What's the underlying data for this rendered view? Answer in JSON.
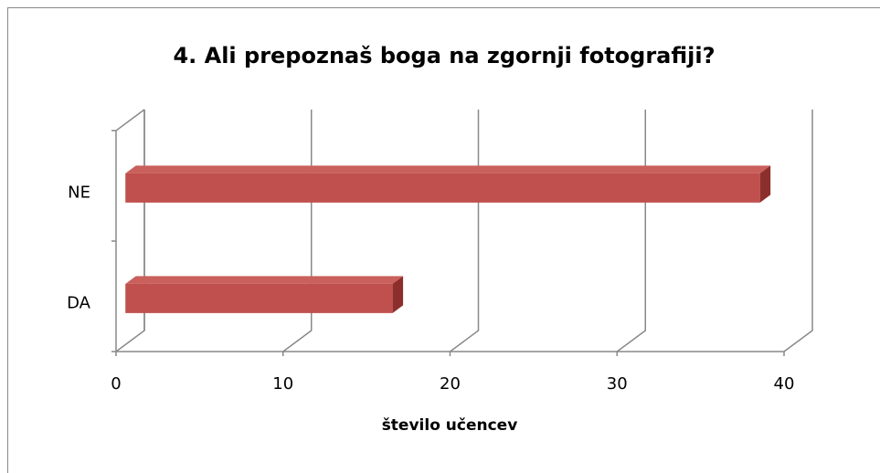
{
  "chart_data": {
    "type": "bar3d_horizontal",
    "title": "4. Ali prepoznaš boga na zgornji fotografiji?",
    "categories": [
      "DA",
      "NE"
    ],
    "values": [
      16,
      38
    ],
    "color": "#c0504d",
    "x_label": "število učencev",
    "xlim": [
      0,
      40
    ],
    "xticks": [
      0,
      10,
      20,
      30,
      40
    ],
    "grid": true
  }
}
